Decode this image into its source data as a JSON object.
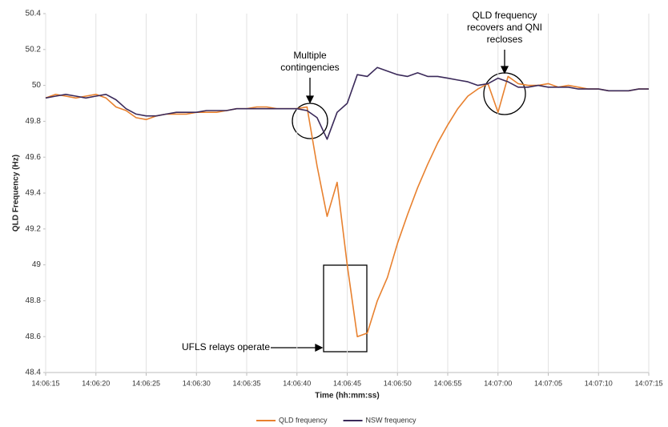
{
  "chart_data": {
    "type": "line",
    "x_label": "Time (hh:mm:ss)",
    "y_label": "QLD Frequency (Hz)",
    "x": [
      "14:06:15",
      "14:06:16",
      "14:06:17",
      "14:06:18",
      "14:06:19",
      "14:06:20",
      "14:06:21",
      "14:06:22",
      "14:06:23",
      "14:06:24",
      "14:06:25",
      "14:06:26",
      "14:06:27",
      "14:06:28",
      "14:06:29",
      "14:06:30",
      "14:06:31",
      "14:06:32",
      "14:06:33",
      "14:06:34",
      "14:06:35",
      "14:06:36",
      "14:06:37",
      "14:06:38",
      "14:06:39",
      "14:06:40",
      "14:06:41",
      "14:06:42",
      "14:06:43",
      "14:06:44",
      "14:06:45",
      "14:06:46",
      "14:06:47",
      "14:06:48",
      "14:06:49",
      "14:06:50",
      "14:06:51",
      "14:06:52",
      "14:06:53",
      "14:06:54",
      "14:06:55",
      "14:06:56",
      "14:06:57",
      "14:06:58",
      "14:06:59",
      "14:07:00",
      "14:07:01",
      "14:07:02",
      "14:07:03",
      "14:07:04",
      "14:07:05",
      "14:07:06",
      "14:07:07",
      "14:07:08",
      "14:07:09",
      "14:07:10",
      "14:07:11",
      "14:07:12",
      "14:07:13",
      "14:07:14",
      "14:07:15"
    ],
    "series": [
      {
        "name": "QLD frequency",
        "color": "#e8812f",
        "values": [
          49.93,
          49.95,
          49.94,
          49.93,
          49.94,
          49.95,
          49.93,
          49.88,
          49.86,
          49.82,
          49.81,
          49.83,
          49.84,
          49.84,
          49.84,
          49.85,
          49.85,
          49.85,
          49.86,
          49.87,
          49.87,
          49.88,
          49.88,
          49.87,
          49.87,
          49.87,
          49.88,
          49.55,
          49.27,
          49.46,
          49.0,
          48.6,
          48.62,
          48.8,
          48.93,
          49.12,
          49.28,
          49.43,
          49.56,
          49.68,
          49.78,
          49.87,
          49.94,
          49.98,
          50.01,
          49.85,
          50.05,
          50.01,
          50.0,
          50.0,
          50.01,
          49.99,
          50.0,
          49.99,
          49.98,
          49.98,
          49.97,
          49.97,
          49.97,
          49.98,
          49.98
        ]
      },
      {
        "name": "NSW frequency",
        "color": "#3b2a5a",
        "values": [
          49.93,
          49.94,
          49.95,
          49.94,
          49.93,
          49.94,
          49.95,
          49.92,
          49.87,
          49.84,
          49.83,
          49.83,
          49.84,
          49.85,
          49.85,
          49.85,
          49.86,
          49.86,
          49.86,
          49.87,
          49.87,
          49.87,
          49.87,
          49.87,
          49.87,
          49.87,
          49.86,
          49.82,
          49.7,
          49.85,
          49.9,
          50.06,
          50.05,
          50.1,
          50.08,
          50.06,
          50.05,
          50.07,
          50.05,
          50.05,
          50.04,
          50.03,
          50.02,
          50.0,
          50.01,
          50.04,
          50.02,
          49.99,
          49.99,
          50.0,
          49.99,
          49.99,
          49.99,
          49.98,
          49.98,
          49.98,
          49.97,
          49.97,
          49.97,
          49.98,
          49.98
        ]
      }
    ],
    "ylim": [
      48.4,
      50.4
    ],
    "yticks": [
      48.4,
      48.6,
      48.8,
      49,
      49.2,
      49.4,
      49.6,
      49.8,
      50,
      50.2,
      50.4
    ],
    "xticks": [
      "14:06:15",
      "14:06:20",
      "14:06:25",
      "14:06:30",
      "14:06:35",
      "14:06:40",
      "14:06:45",
      "14:06:50",
      "14:06:55",
      "14:07:00",
      "14:07:05",
      "14:07:10",
      "14:07:15"
    ],
    "grid": "x",
    "legend": "bottom",
    "annotations": [
      {
        "lines": [
          "Multiple",
          "contingencies"
        ]
      },
      {
        "lines": [
          "QLD frequency",
          "recovers and QNI",
          "recloses"
        ]
      },
      {
        "lines": [
          "UFLS relays operate"
        ]
      }
    ]
  }
}
